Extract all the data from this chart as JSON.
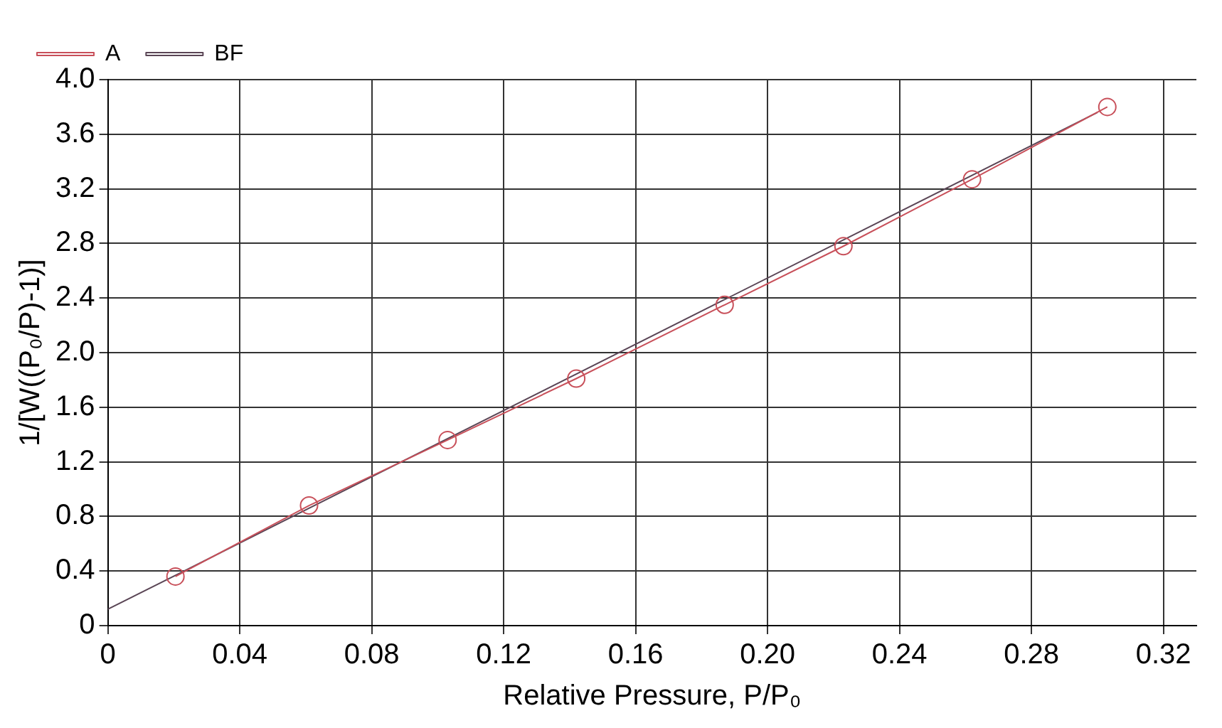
{
  "chart_data": {
    "type": "line",
    "xlabel": "Relative Pressure, P/P₀",
    "ylabel": "1/[W((P₀/P)-1)]",
    "xlim": [
      0,
      0.33
    ],
    "xticks": [
      0,
      0.04,
      0.08,
      0.12,
      0.16,
      {
        "value": 0.2,
        "label": "0.20"
      },
      0.24,
      0.28,
      0.32
    ],
    "ylim": [
      0,
      4
    ],
    "yticks": [
      0,
      0.4,
      0.8,
      1.2,
      1.6,
      {
        "value": 2,
        "label": "2.0"
      },
      2.4,
      2.8,
      3.2,
      3.6,
      {
        "value": 4,
        "label": "4.0"
      }
    ],
    "grid": true,
    "legend": "top left",
    "series": [
      {
        "name": "A",
        "color": "#c8505a",
        "marker": "circle",
        "x": [
          0.0205,
          0.061,
          0.103,
          0.142,
          0.187,
          0.223,
          0.262,
          0.303
        ],
        "values": [
          0.36,
          0.88,
          1.36,
          1.81,
          2.35,
          2.78,
          3.27,
          3.8
        ]
      },
      {
        "name": "BF",
        "color": "#5a4555",
        "marker": "none",
        "x": [
          0,
          0.3
        ],
        "values": [
          0.12,
          3.76
        ]
      }
    ]
  }
}
